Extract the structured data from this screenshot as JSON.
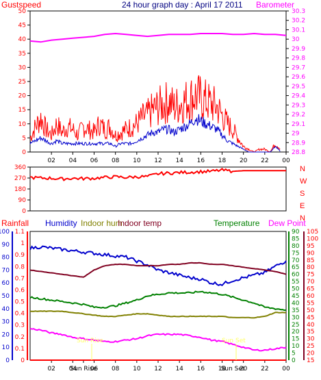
{
  "chart_data": [
    {
      "type": "line",
      "title": "24 hour graph day : April 17 2011",
      "left_axis_label": "Gustspeed",
      "right_axis_label": "Barometer",
      "left_ticks": [
        "0",
        "5",
        "10",
        "15",
        "20",
        "25",
        "30",
        "35",
        "40",
        "45",
        "50"
      ],
      "right_ticks": [
        "28.8",
        "28.9",
        "29",
        "29.1",
        "29.2",
        "29.3",
        "29.4",
        "29.5",
        "29.6",
        "29.7",
        "29.8",
        "29.9",
        "30",
        "30.1",
        "30.2",
        "30.3"
      ],
      "x_tick_labels": [
        "02",
        "04",
        "06",
        "08",
        "10",
        "12",
        "14",
        "16",
        "18",
        "20",
        "22",
        "00"
      ],
      "ylim_left": [
        0,
        50
      ],
      "ylim_right": [
        28.8,
        30.3
      ],
      "series": [
        {
          "name": "Gustspeed",
          "color": "#ff0000",
          "axis": "left",
          "x": [
            0,
            0.5,
            1,
            1.5,
            2,
            2.5,
            3,
            3.5,
            4,
            4.5,
            5,
            5.5,
            6,
            6.5,
            7,
            7.5,
            8,
            8.5,
            9,
            9.5,
            10,
            10.5,
            11,
            11.5,
            12,
            12.5,
            13,
            13.5,
            14,
            14.5,
            15,
            15.5,
            16,
            16.5,
            17,
            17.5,
            18,
            18.5,
            19,
            19.5,
            20,
            20.5,
            21,
            21.5,
            22,
            22.5,
            23,
            23.5
          ],
          "y": [
            5,
            9,
            12,
            8,
            6,
            10,
            7,
            9,
            8,
            6,
            9,
            8,
            7,
            10,
            8,
            9,
            6,
            7,
            8,
            9,
            10,
            12,
            13,
            15,
            16,
            17,
            18,
            16,
            17,
            18,
            19,
            20,
            19,
            18,
            17,
            16,
            13,
            10,
            8,
            5,
            2,
            1,
            0,
            1,
            1,
            0,
            3,
            1
          ]
        },
        {
          "name": "Windspeed",
          "color": "#0000cc",
          "axis": "left",
          "x": [
            0,
            0.5,
            1,
            1.5,
            2,
            2.5,
            3,
            3.5,
            4,
            4.5,
            5,
            5.5,
            6,
            6.5,
            7,
            7.5,
            8,
            8.5,
            9,
            9.5,
            10,
            10.5,
            11,
            11.5,
            12,
            12.5,
            13,
            13.5,
            14,
            14.5,
            15,
            15.5,
            16,
            16.5,
            17,
            17.5,
            18,
            18.5,
            19,
            19.5,
            20,
            20.5,
            21,
            21.5,
            22,
            22.5,
            23,
            23.5
          ],
          "y": [
            3,
            4,
            5,
            4,
            3,
            4,
            3,
            3,
            3,
            3,
            3,
            3,
            3,
            3,
            3,
            3,
            2,
            3,
            3,
            3,
            4,
            5,
            6,
            7,
            7,
            8,
            8,
            7,
            8,
            9,
            10,
            12,
            11,
            10,
            9,
            8,
            6,
            4,
            3,
            2,
            1,
            0,
            0,
            0,
            0,
            0,
            2,
            0
          ]
        },
        {
          "name": "Barometer",
          "color": "#ff00ff",
          "axis": "right",
          "x": [
            0,
            1,
            2,
            3,
            4,
            5,
            6,
            7,
            8,
            9,
            10,
            11,
            12,
            13,
            14,
            15,
            16,
            17,
            18,
            19,
            20,
            21,
            22,
            23,
            24
          ],
          "y": [
            29.98,
            29.97,
            29.99,
            30.0,
            30.01,
            30.02,
            30.03,
            30.05,
            30.06,
            30.05,
            30.04,
            30.03,
            30.04,
            30.05,
            30.05,
            30.05,
            30.06,
            30.06,
            30.06,
            30.05,
            30.05,
            30.06,
            30.05,
            30.05,
            30.04
          ]
        }
      ]
    },
    {
      "type": "line",
      "title": "",
      "left_ticks": [
        "0",
        "90",
        "180",
        "270",
        "360"
      ],
      "right_labels": [
        "N",
        "W",
        "S",
        "E",
        "N"
      ],
      "ylim": [
        0,
        360
      ],
      "series": [
        {
          "name": "Wind direction",
          "color": "#ff0000",
          "x": [
            0,
            1,
            2,
            3,
            4,
            5,
            6,
            7,
            8,
            9,
            10,
            11,
            12,
            13,
            14,
            15,
            16,
            17,
            18,
            19,
            20,
            21,
            22,
            23,
            24
          ],
          "y": [
            275,
            270,
            268,
            262,
            268,
            265,
            268,
            275,
            280,
            275,
            280,
            282,
            305,
            310,
            315,
            318,
            322,
            325,
            335,
            325,
            330,
            330,
            330,
            330,
            330
          ]
        }
      ]
    },
    {
      "type": "line",
      "title": "",
      "legend": [
        "Rainfall",
        "Humidity",
        "Indoor hum",
        "Indoor temp",
        "Temperature",
        "Dew Point"
      ],
      "rain_ticks": [
        "0",
        "0.1",
        "0.2",
        "0.3",
        "0.4",
        "0.5",
        "0.6",
        "0.7",
        "0.8",
        "0.9",
        "1",
        "1.1"
      ],
      "humidity_ticks": [
        "0",
        "10",
        "20",
        "30",
        "40",
        "50",
        "60",
        "70",
        "80",
        "90",
        "100"
      ],
      "temp_ticks": [
        "0",
        "5",
        "10",
        "15",
        "20",
        "25",
        "30",
        "35",
        "40",
        "45",
        "50",
        "55",
        "60",
        "65",
        "70",
        "75",
        "80",
        "85",
        "90"
      ],
      "dew_ticks": [
        "15",
        "20",
        "25",
        "30",
        "35",
        "40",
        "45",
        "50",
        "55",
        "60",
        "65",
        "70",
        "75",
        "80",
        "85",
        "90",
        "95",
        "100",
        "105"
      ],
      "x_tick_labels": [
        "02",
        "04",
        "Sun Rise",
        "06",
        "08",
        "10",
        "12",
        "14",
        "16",
        "18",
        "Sun Set",
        "20",
        "22",
        "00"
      ],
      "annotations": [
        "Sun Rise",
        "Sun Set"
      ],
      "series": [
        {
          "name": "Humidity",
          "color": "#0000cc",
          "axis": "humidity",
          "x": [
            0,
            1,
            2,
            3,
            4,
            5,
            6,
            7,
            8,
            9,
            10,
            11,
            12,
            13,
            14,
            15,
            16,
            17,
            18,
            19,
            20,
            21,
            22,
            23,
            24
          ],
          "y": [
            87,
            88,
            87,
            86,
            85,
            84,
            83,
            82,
            81,
            80,
            77,
            74,
            70,
            68,
            66,
            64,
            63,
            60,
            59,
            62,
            64,
            66,
            68,
            73,
            77
          ]
        },
        {
          "name": "Indoor temp",
          "color": "#800020",
          "axis": "temp",
          "x": [
            0,
            1,
            2,
            3,
            4,
            5,
            6,
            7,
            8,
            9,
            10,
            11,
            12,
            13,
            14,
            15,
            16,
            17,
            18,
            19,
            20,
            21,
            22,
            23,
            24
          ],
          "y": [
            63,
            62,
            61,
            60,
            59,
            58,
            63,
            66,
            67,
            67,
            66,
            66,
            66,
            67,
            67,
            68,
            68,
            67,
            67,
            66,
            65,
            64,
            63,
            62,
            60
          ]
        },
        {
          "name": "Temperature",
          "color": "#008000",
          "axis": "temp",
          "x": [
            0,
            1,
            2,
            3,
            4,
            5,
            6,
            7,
            8,
            9,
            10,
            11,
            12,
            13,
            14,
            15,
            16,
            17,
            18,
            19,
            20,
            21,
            22,
            23,
            24
          ],
          "y": [
            44,
            43,
            42,
            41,
            40,
            39,
            37,
            37,
            38,
            40,
            42,
            45,
            46,
            47,
            47,
            47,
            48,
            47,
            46,
            44,
            42,
            40,
            37,
            36,
            35
          ]
        },
        {
          "name": "Indoor hum",
          "color": "#808000",
          "axis": "humidity",
          "x": [
            0,
            1,
            2,
            3,
            4,
            5,
            6,
            7,
            8,
            9,
            10,
            11,
            12,
            13,
            14,
            15,
            16,
            17,
            18,
            19,
            20,
            21,
            22,
            23,
            24
          ],
          "y": [
            38,
            38,
            38,
            38,
            37,
            36,
            35,
            34,
            34,
            35,
            36,
            36,
            35,
            34,
            34,
            34,
            34,
            34,
            34,
            33,
            33,
            33,
            34,
            37,
            37
          ]
        },
        {
          "name": "Dew Point",
          "color": "#ff00ff",
          "axis": "dew",
          "x": [
            0,
            1,
            2,
            3,
            4,
            5,
            6,
            7,
            8,
            9,
            10,
            11,
            12,
            13,
            14,
            15,
            16,
            17,
            18,
            19,
            20,
            21,
            22,
            23,
            24
          ],
          "y": [
            37,
            36,
            34,
            33,
            31,
            30,
            29,
            28,
            28,
            29,
            30,
            32,
            33,
            33,
            33,
            32,
            31,
            29,
            28,
            26,
            24,
            22,
            22,
            23,
            24
          ]
        },
        {
          "name": "Rainfall",
          "color": "#ff0000",
          "axis": "rain",
          "x": [
            0,
            24
          ],
          "y": [
            0,
            0
          ]
        }
      ]
    }
  ]
}
